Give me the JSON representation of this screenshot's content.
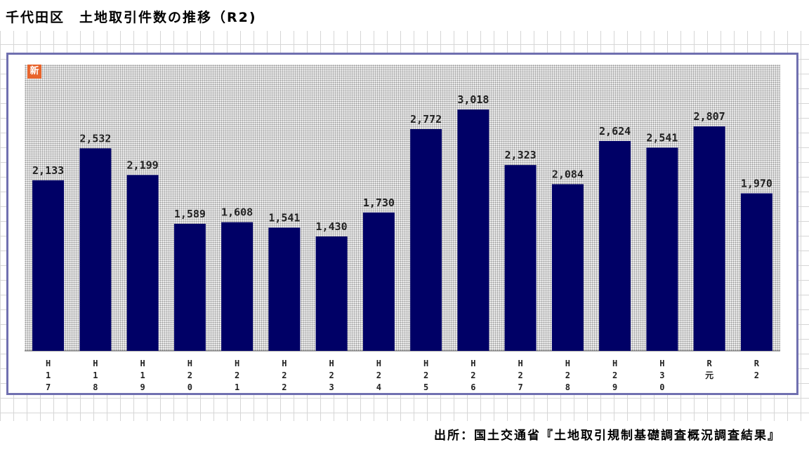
{
  "title": "千代田区　土地取引件数の推移（R2)",
  "badge": "新",
  "source": "出所：国土交通省『土地取引規制基礎調査概況調査結果』",
  "colors": {
    "bar": "#000066",
    "frame": "#7070b0",
    "badge": "#e8642c"
  },
  "chart_data": {
    "type": "bar",
    "categories": [
      "H17",
      "H18",
      "H19",
      "H20",
      "H21",
      "H22",
      "H23",
      "H24",
      "H25",
      "H26",
      "H27",
      "H28",
      "H29",
      "H30",
      "R元",
      "R2"
    ],
    "tick_labels": [
      [
        "H",
        "1",
        "7"
      ],
      [
        "H",
        "1",
        "8"
      ],
      [
        "H",
        "1",
        "9"
      ],
      [
        "H",
        "2",
        "0"
      ],
      [
        "H",
        "2",
        "1"
      ],
      [
        "H",
        "2",
        "2"
      ],
      [
        "H",
        "2",
        "3"
      ],
      [
        "H",
        "2",
        "4"
      ],
      [
        "H",
        "2",
        "5"
      ],
      [
        "H",
        "2",
        "6"
      ],
      [
        "H",
        "2",
        "7"
      ],
      [
        "H",
        "2",
        "8"
      ],
      [
        "H",
        "2",
        "9"
      ],
      [
        "H",
        "3",
        "0"
      ],
      [
        "R",
        "元"
      ],
      [
        "R",
        "2"
      ]
    ],
    "values": [
      2133,
      2532,
      2199,
      1589,
      1608,
      1541,
      1430,
      1730,
      2772,
      3018,
      2323,
      2084,
      2624,
      2541,
      2807,
      1970
    ],
    "data_labels": [
      "2,133",
      "2,532",
      "2,199",
      "1,589",
      "1,608",
      "1,541",
      "1,430",
      "1,730",
      "2,772",
      "3,018",
      "2,323",
      "2,084",
      "2,624",
      "2,541",
      "2,807",
      "1,970"
    ],
    "title": "千代田区　土地取引件数の推移（R2)",
    "xlabel": "",
    "ylabel": "",
    "ylim": [
      0,
      3500
    ],
    "grid": false,
    "legend": "none"
  }
}
